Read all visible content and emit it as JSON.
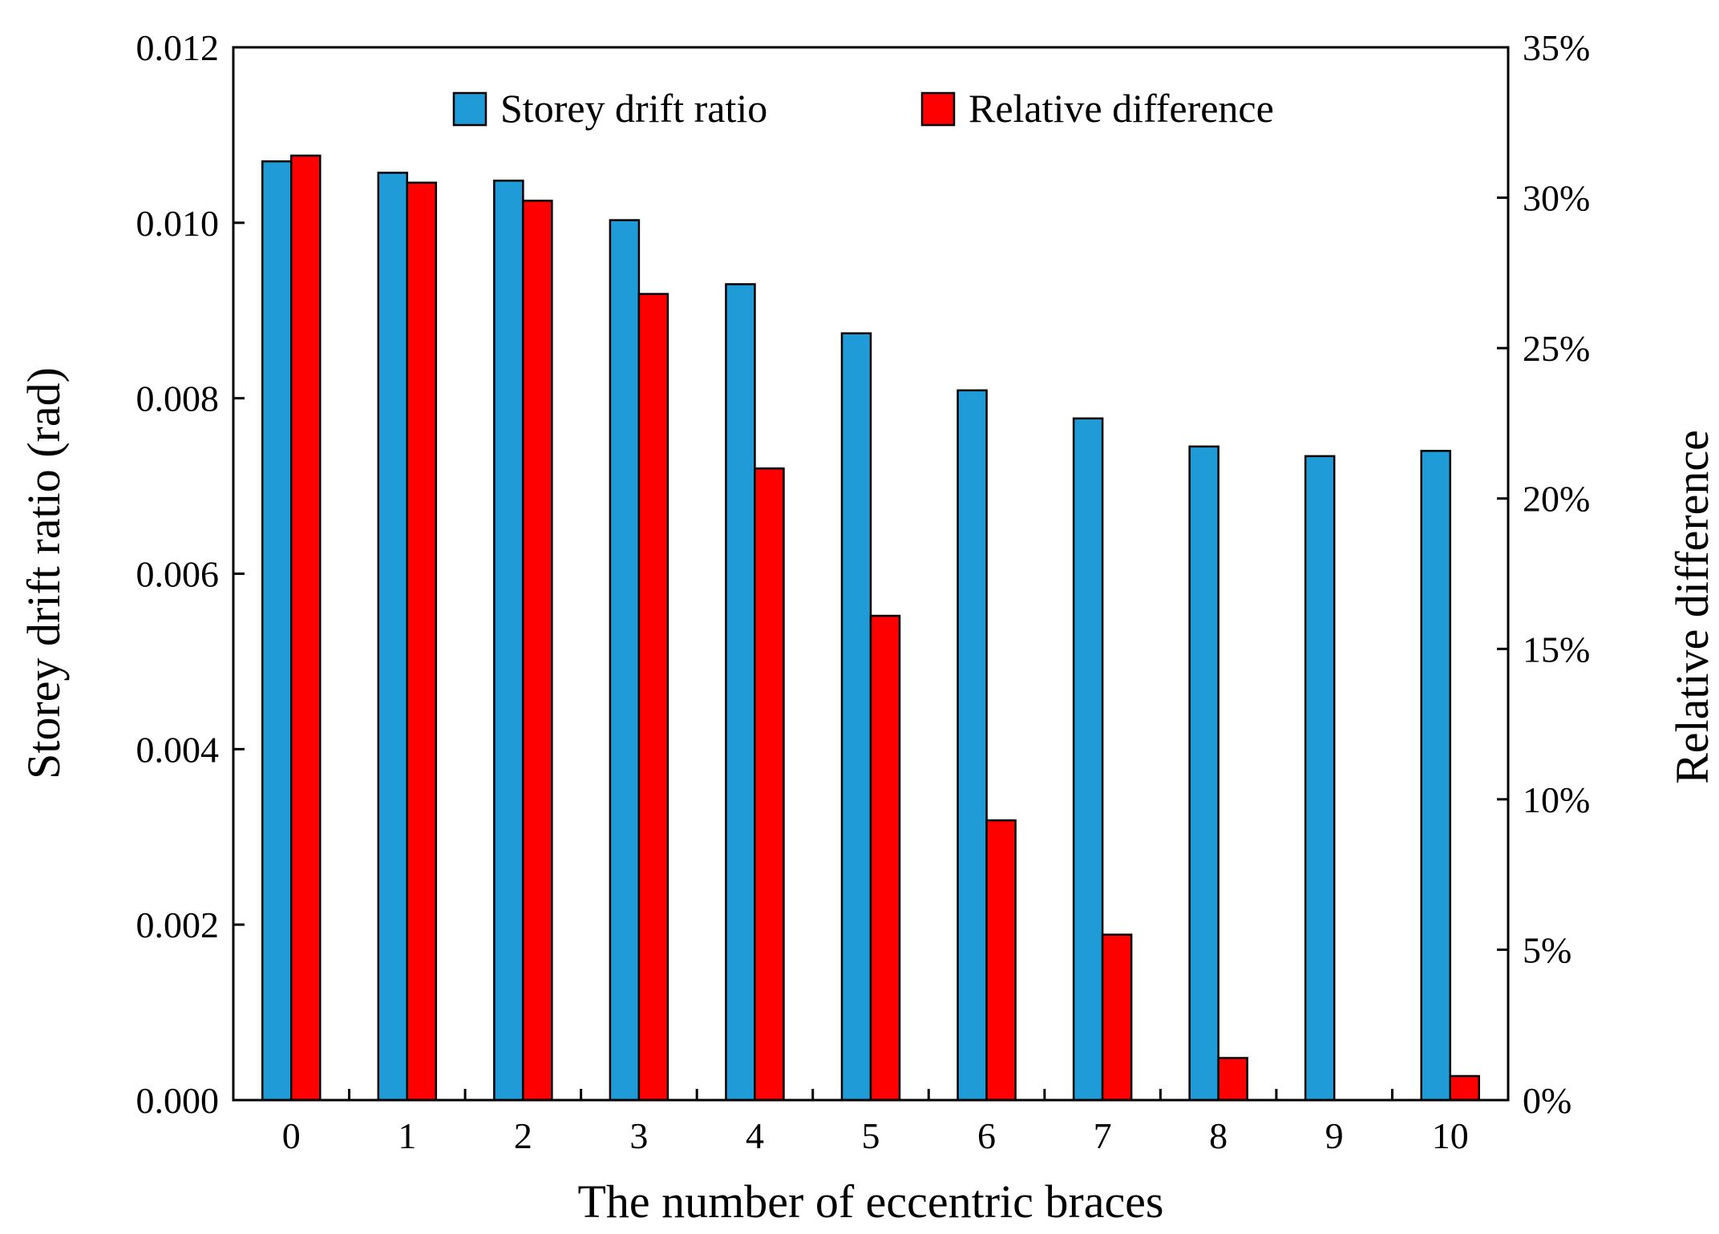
{
  "chart_data": {
    "type": "bar",
    "categories": [
      "0",
      "1",
      "2",
      "3",
      "4",
      "5",
      "6",
      "7",
      "8",
      "9",
      "10"
    ],
    "series": [
      {
        "name": "Storey drift ratio",
        "axis": "left",
        "color": "#1f9bd8",
        "values": [
          0.0107,
          0.01057,
          0.01048,
          0.01003,
          0.0093,
          0.00874,
          0.00809,
          0.00777,
          0.00745,
          0.00734,
          0.0074
        ]
      },
      {
        "name": "Relative difference",
        "axis": "right",
        "color": "#ff0000",
        "values": [
          31.4,
          30.5,
          29.9,
          26.8,
          21.0,
          16.1,
          9.3,
          5.5,
          1.4,
          0.0,
          0.8
        ]
      }
    ],
    "title": "",
    "xlabel": "The number of eccentric braces",
    "ylabel": "Storey drift ratio (rad)",
    "y2label": "Relative difference",
    "ylim": [
      0,
      0.012
    ],
    "y2lim": [
      0,
      35
    ],
    "yticks": [
      "0.000",
      "0.002",
      "0.004",
      "0.006",
      "0.008",
      "0.010",
      "0.012"
    ],
    "y2ticks": [
      "0%",
      "5%",
      "10%",
      "15%",
      "20%",
      "25%",
      "30%",
      "35%"
    ],
    "grid": false,
    "legend_position": "top-center"
  }
}
